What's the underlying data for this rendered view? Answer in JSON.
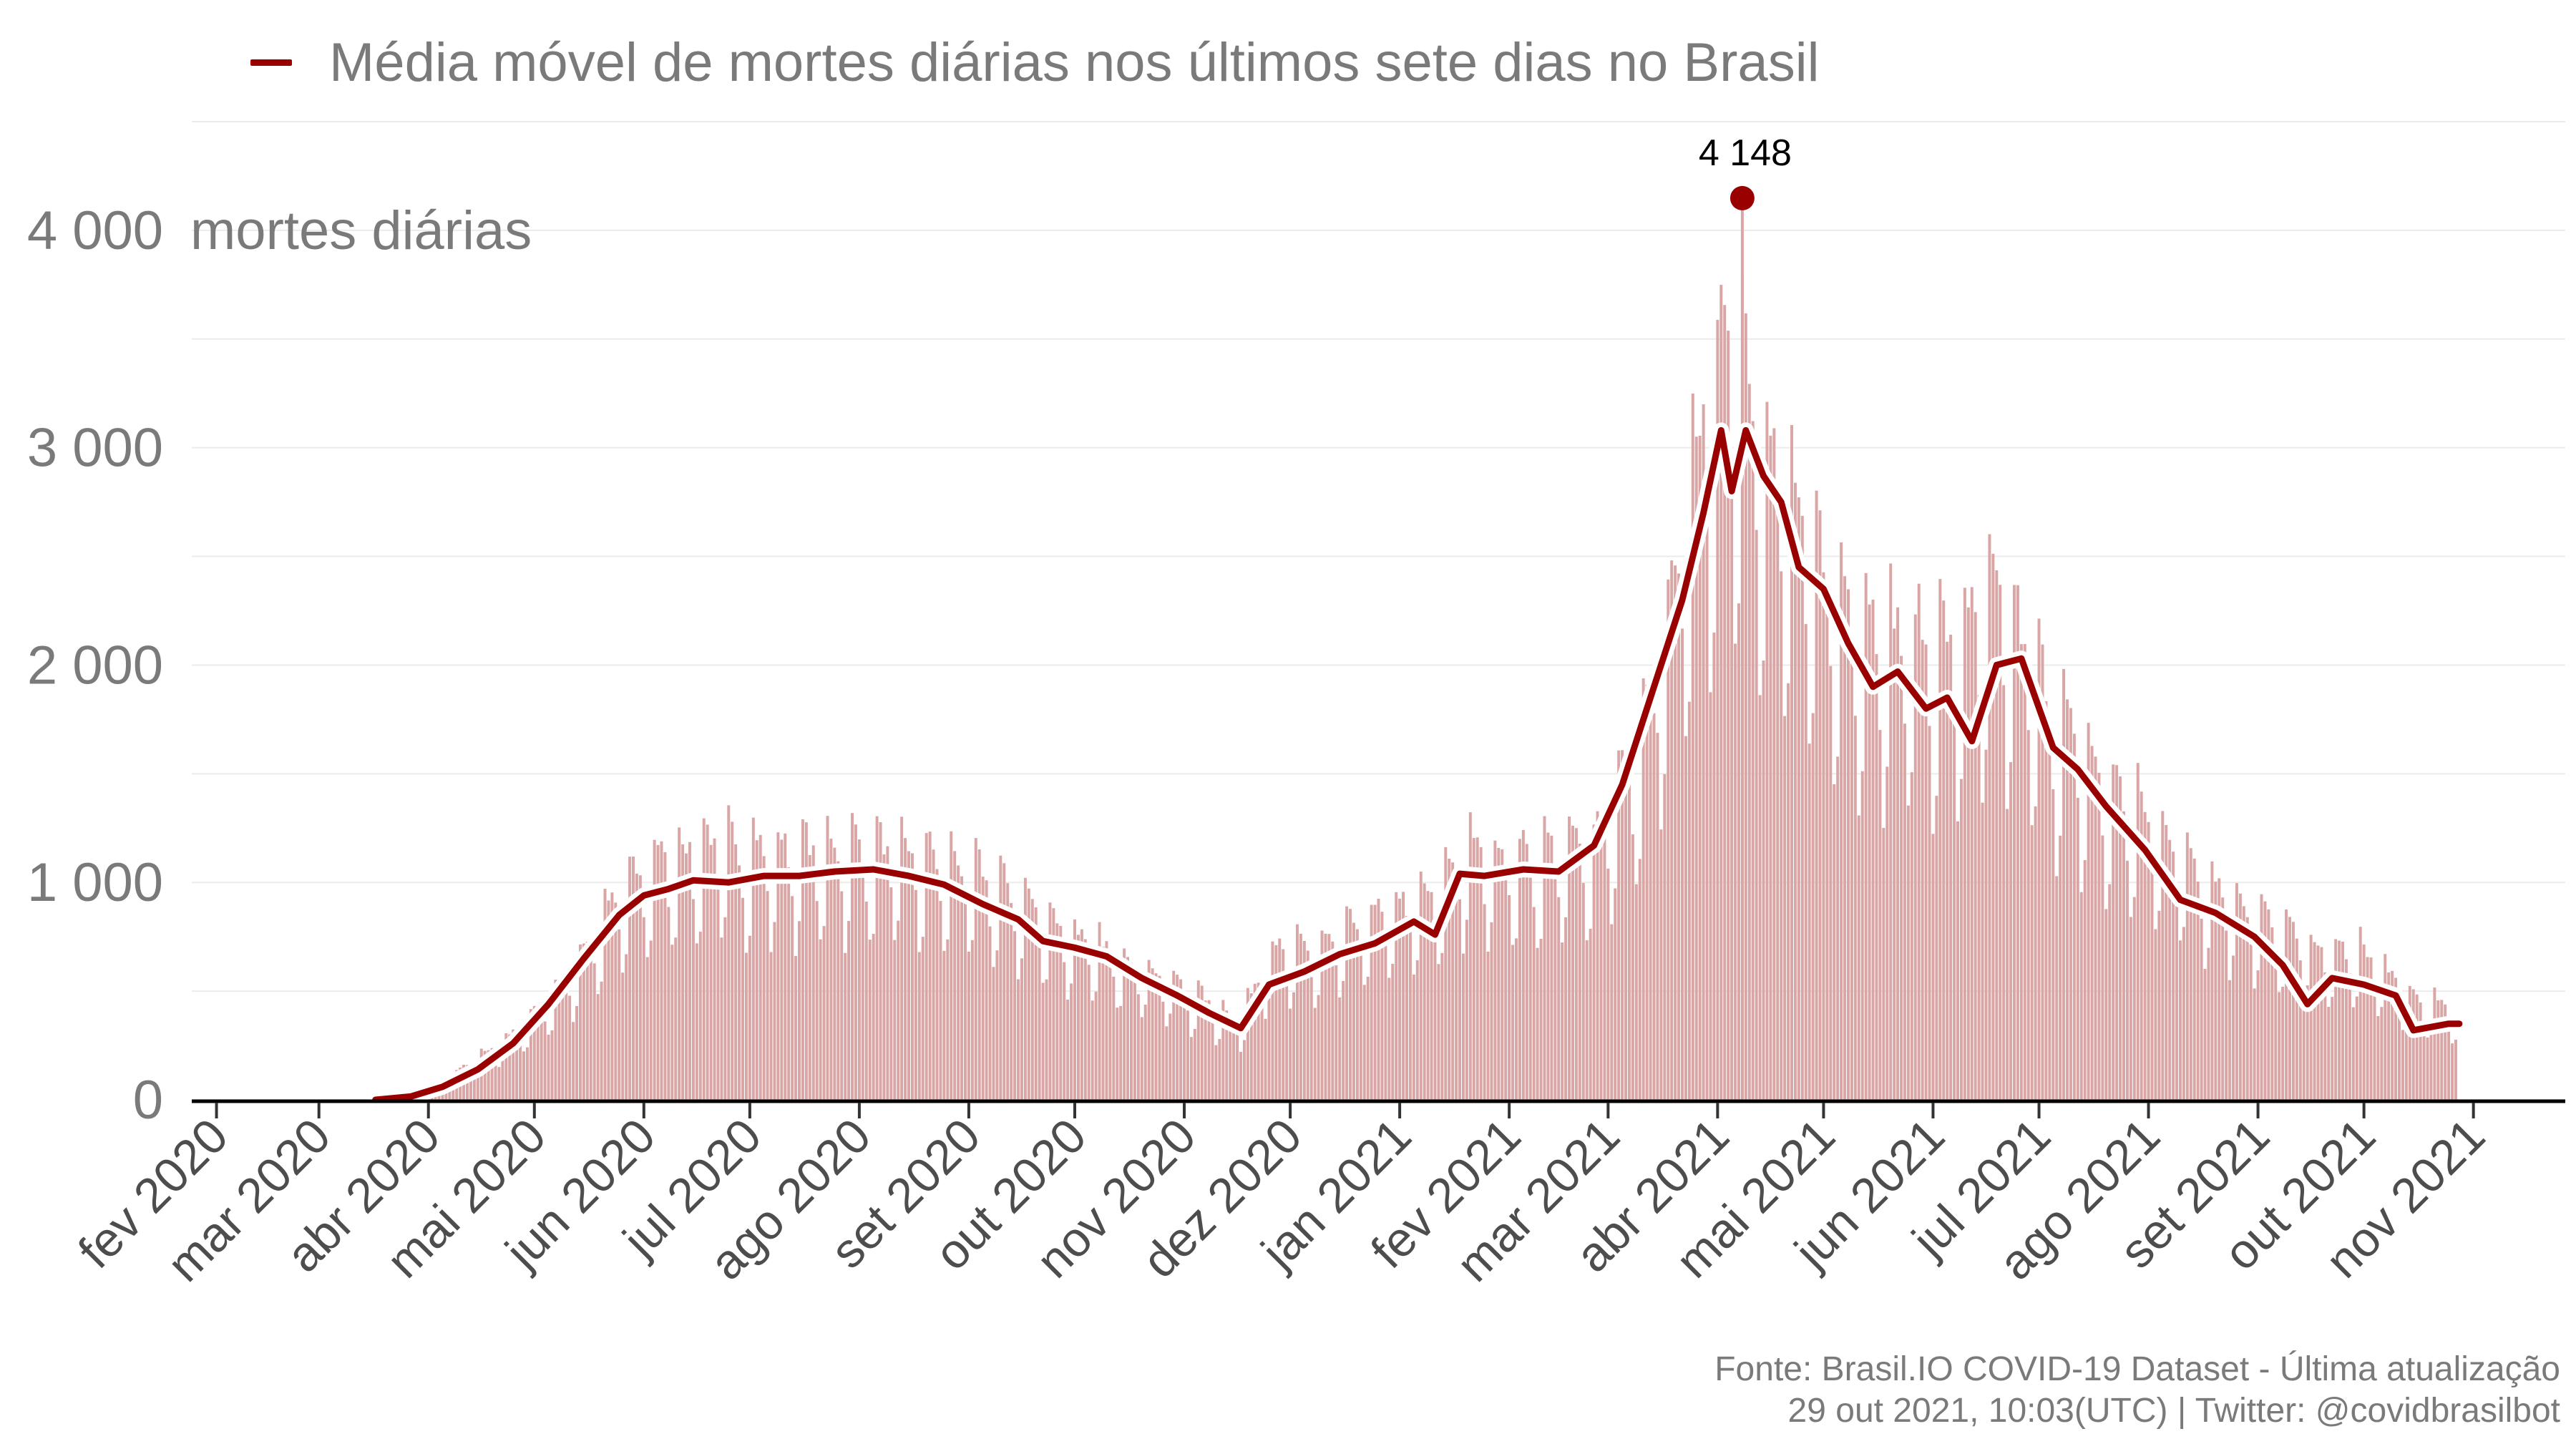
{
  "legend": {
    "label": "Média móvel de mortes diárias nos últimos sete dias no Brasil"
  },
  "colors": {
    "bars": "#d9a5a5",
    "line": "#990000",
    "halo": "#ffffff",
    "axis": "#000000",
    "grid": "#ebebeb",
    "peak": "#990000"
  },
  "footer": {
    "line1": "Fonte: Brasil.IO COVID-19 Dataset - Última atualização",
    "line2": "29 out 2021, 10:03(UTC) | Twitter: @covidbrasilbot"
  },
  "chart_data": {
    "type": "bar",
    "x_type": "date",
    "xlim": [
      "2020-01-25",
      "2021-11-27"
    ],
    "ylim": [
      0,
      4500
    ],
    "yticks": [
      0,
      1000,
      2000,
      3000,
      4000
    ],
    "ytick_labels": [
      "0",
      "1 000",
      "2 000",
      "3 000",
      "4 000"
    ],
    "ylabel_unit": "mortes diárias",
    "xticks": [
      "2020-02-01",
      "2020-03-01",
      "2020-04-01",
      "2020-05-01",
      "2020-06-01",
      "2020-07-01",
      "2020-08-01",
      "2020-09-01",
      "2020-10-01",
      "2020-11-01",
      "2020-12-01",
      "2021-01-01",
      "2021-02-01",
      "2021-03-01",
      "2021-04-01",
      "2021-05-01",
      "2021-06-01",
      "2021-07-01",
      "2021-08-01",
      "2021-09-01",
      "2021-10-01",
      "2021-11-01"
    ],
    "xtick_labels": [
      "fev 2020",
      "mar 2020",
      "abr 2020",
      "mai 2020",
      "jun 2020",
      "jul 2020",
      "ago 2020",
      "set 2020",
      "out 2020",
      "nov 2020",
      "dez 2020",
      "jan 2021",
      "fev 2021",
      "mar 2021",
      "abr 2021",
      "mai 2021",
      "jun 2021",
      "jul 2021",
      "ago 2021",
      "set 2021",
      "out 2021",
      "nov 2021"
    ],
    "grid": true,
    "legend_position": "top-left",
    "series": [
      {
        "name": "Média móvel de mortes diárias nos últimos sete dias no Brasil",
        "type": "line",
        "points": [
          [
            "2020-03-17",
            0
          ],
          [
            "2020-03-27",
            15
          ],
          [
            "2020-04-05",
            60
          ],
          [
            "2020-04-15",
            140
          ],
          [
            "2020-04-25",
            260
          ],
          [
            "2020-05-05",
            440
          ],
          [
            "2020-05-15",
            650
          ],
          [
            "2020-05-25",
            850
          ],
          [
            "2020-06-01",
            940
          ],
          [
            "2020-06-08",
            970
          ],
          [
            "2020-06-15",
            1010
          ],
          [
            "2020-06-25",
            1000
          ],
          [
            "2020-07-05",
            1030
          ],
          [
            "2020-07-15",
            1030
          ],
          [
            "2020-07-25",
            1050
          ],
          [
            "2020-08-05",
            1060
          ],
          [
            "2020-08-15",
            1030
          ],
          [
            "2020-08-25",
            990
          ],
          [
            "2020-09-05",
            900
          ],
          [
            "2020-09-15",
            830
          ],
          [
            "2020-09-22",
            730
          ],
          [
            "2020-10-01",
            700
          ],
          [
            "2020-10-10",
            660
          ],
          [
            "2020-10-20",
            560
          ],
          [
            "2020-10-30",
            480
          ],
          [
            "2020-11-08",
            400
          ],
          [
            "2020-11-17",
            330
          ],
          [
            "2020-11-25",
            530
          ],
          [
            "2020-12-05",
            590
          ],
          [
            "2020-12-15",
            670
          ],
          [
            "2020-12-25",
            720
          ],
          [
            "2021-01-05",
            820
          ],
          [
            "2021-01-11",
            760
          ],
          [
            "2021-01-18",
            1040
          ],
          [
            "2021-01-25",
            1030
          ],
          [
            "2021-02-05",
            1060
          ],
          [
            "2021-02-15",
            1050
          ],
          [
            "2021-02-25",
            1170
          ],
          [
            "2021-03-05",
            1450
          ],
          [
            "2021-03-15",
            1950
          ],
          [
            "2021-03-22",
            2300
          ],
          [
            "2021-03-28",
            2700
          ],
          [
            "2021-04-02",
            3080
          ],
          [
            "2021-04-05",
            2800
          ],
          [
            "2021-04-09",
            3080
          ],
          [
            "2021-04-14",
            2870
          ],
          [
            "2021-04-19",
            2750
          ],
          [
            "2021-04-24",
            2450
          ],
          [
            "2021-05-01",
            2350
          ],
          [
            "2021-05-08",
            2100
          ],
          [
            "2021-05-15",
            1900
          ],
          [
            "2021-05-22",
            1970
          ],
          [
            "2021-05-30",
            1800
          ],
          [
            "2021-06-05",
            1850
          ],
          [
            "2021-06-12",
            1650
          ],
          [
            "2021-06-19",
            2000
          ],
          [
            "2021-06-26",
            2030
          ],
          [
            "2021-07-05",
            1620
          ],
          [
            "2021-07-12",
            1520
          ],
          [
            "2021-07-20",
            1350
          ],
          [
            "2021-07-31",
            1150
          ],
          [
            "2021-08-10",
            920
          ],
          [
            "2021-08-20",
            860
          ],
          [
            "2021-08-31",
            750
          ],
          [
            "2021-09-08",
            620
          ],
          [
            "2021-09-15",
            440
          ],
          [
            "2021-09-22",
            560
          ],
          [
            "2021-10-01",
            530
          ],
          [
            "2021-10-10",
            480
          ],
          [
            "2021-10-15",
            320
          ],
          [
            "2021-10-25",
            350
          ],
          [
            "2021-10-28",
            350
          ]
        ]
      },
      {
        "name": "",
        "type": "bar",
        "envelope": [
          [
            "2020-03-17",
            0
          ],
          [
            "2020-04-05",
            100
          ],
          [
            "2020-04-25",
            350
          ],
          [
            "2020-05-10",
            650
          ],
          [
            "2020-05-25",
            1100
          ],
          [
            "2020-06-05",
            1300
          ],
          [
            "2020-06-20",
            1380
          ],
          [
            "2020-07-10",
            1330
          ],
          [
            "2020-07-30",
            1360
          ],
          [
            "2020-08-15",
            1330
          ],
          [
            "2020-08-31",
            1250
          ],
          [
            "2020-09-15",
            1100
          ],
          [
            "2020-10-01",
            880
          ],
          [
            "2020-10-20",
            720
          ],
          [
            "2020-11-05",
            560
          ],
          [
            "2020-11-17",
            420
          ],
          [
            "2020-11-25",
            800
          ],
          [
            "2020-12-10",
            820
          ],
          [
            "2020-12-25",
            1000
          ],
          [
            "2021-01-10",
            1100
          ],
          [
            "2021-01-20",
            1350
          ],
          [
            "2021-02-05",
            1300
          ],
          [
            "2021-02-25",
            1400
          ],
          [
            "2021-03-10",
            1900
          ],
          [
            "2021-03-20",
            2700
          ],
          [
            "2021-03-27",
            3600
          ],
          [
            "2021-04-06",
            4148
          ],
          [
            "2021-04-14",
            3600
          ],
          [
            "2021-04-24",
            3100
          ],
          [
            "2021-05-05",
            2700
          ],
          [
            "2021-05-20",
            2500
          ],
          [
            "2021-06-05",
            2450
          ],
          [
            "2021-06-20",
            2700
          ],
          [
            "2021-07-05",
            2100
          ],
          [
            "2021-07-20",
            1700
          ],
          [
            "2021-08-05",
            1450
          ],
          [
            "2021-08-20",
            1150
          ],
          [
            "2021-09-05",
            950
          ],
          [
            "2021-09-20",
            800
          ],
          [
            "2021-10-01",
            800
          ],
          [
            "2021-10-15",
            550
          ],
          [
            "2021-10-28",
            480
          ]
        ]
      }
    ],
    "annotations": [
      {
        "x": "2021-04-08",
        "y": 4148,
        "label": "4 148"
      }
    ]
  }
}
